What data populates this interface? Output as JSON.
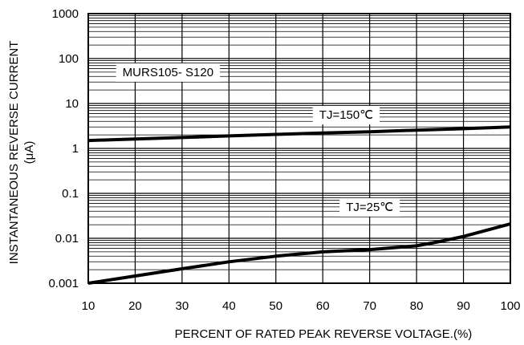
{
  "chart_data": {
    "type": "line",
    "title": "",
    "xlabel": "PERCENT OF RATED PEAK REVERSE VOLTAGE.(%)",
    "ylabel": "INSTANTANEOUS REVERSE CURRENT",
    "ylabel_unit": "(μA)",
    "xlim": [
      10,
      100
    ],
    "ylim": [
      0.001,
      1000
    ],
    "yscale": "log",
    "grid": true,
    "x_ticks": [
      10,
      20,
      30,
      40,
      50,
      60,
      70,
      80,
      90,
      100
    ],
    "y_ticks": [
      "0.001",
      "0.01",
      "0.1",
      "1",
      "10",
      "100",
      "1000"
    ],
    "series": [
      {
        "name": "TJ=150℃",
        "x": [
          10,
          20,
          30,
          40,
          50,
          60,
          70,
          80,
          90,
          100
        ],
        "y": [
          1.5,
          1.62,
          1.75,
          1.9,
          2.05,
          2.2,
          2.35,
          2.55,
          2.75,
          3.0
        ]
      },
      {
        "name": "TJ=25℃",
        "x": [
          10,
          20,
          30,
          40,
          50,
          60,
          70,
          80,
          85,
          90,
          100
        ],
        "y": [
          0.001,
          0.00145,
          0.0021,
          0.003,
          0.004,
          0.005,
          0.0056,
          0.0068,
          0.0085,
          0.011,
          0.021
        ]
      }
    ],
    "annotations": [
      {
        "text": "MURS105- S120",
        "x": 27,
        "y": 50
      },
      {
        "text": "TJ=150℃",
        "x": 65,
        "y": 5.6
      },
      {
        "text": "TJ=25℃",
        "x": 70,
        "y": 0.05
      }
    ]
  }
}
